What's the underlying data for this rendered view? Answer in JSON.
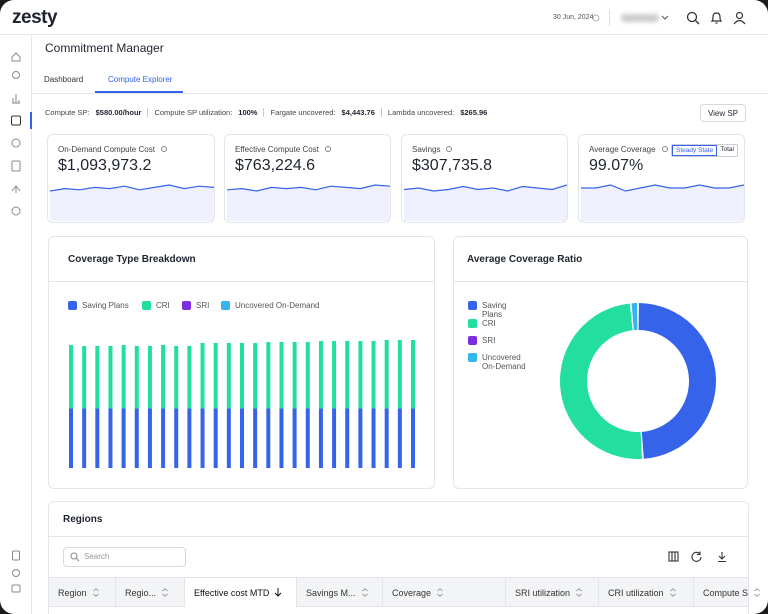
{
  "header": {
    "logo": "zesty",
    "date": "30 Jun, 2024"
  },
  "page": {
    "title": "Commitment Manager",
    "tabs": [
      "Dashboard",
      "Compute Explorer"
    ]
  },
  "summary": [
    {
      "label": "Compute SP:",
      "value": "$580.00/hour"
    },
    {
      "label": "Compute SP utilization:",
      "value": "100%"
    },
    {
      "label": "Fargate uncovered:",
      "value": "$4,443.76"
    },
    {
      "label": "Lambda uncovered:",
      "value": "$265.96"
    }
  ],
  "view_button": "View SP",
  "kpis": [
    {
      "label": "On-Demand Compute Cost",
      "value": "$1,093,973.2",
      "trend": [
        50,
        52,
        51,
        53,
        52,
        54,
        51,
        53,
        55,
        52,
        54,
        53
      ]
    },
    {
      "label": "Effective Compute Cost",
      "value": "$763,224.6",
      "trend": [
        51,
        52,
        50,
        53,
        52,
        53,
        51,
        54,
        53,
        52,
        55,
        54
      ]
    },
    {
      "label": "Savings",
      "value": "$307,735.8",
      "trend": [
        52,
        53,
        51,
        52,
        54,
        52,
        53,
        51,
        54,
        53,
        52,
        55
      ]
    },
    {
      "label": "Average Coverage",
      "value": "99.07%",
      "toggle": [
        "Steady State",
        "Total"
      ],
      "trend": [
        53,
        53,
        54,
        52,
        53,
        54,
        53,
        53,
        54,
        53,
        53,
        54
      ]
    }
  ],
  "coverage_breakdown": {
    "type": "bar",
    "stacked": true,
    "title": "Coverage Type Breakdown",
    "series": [
      {
        "name": "Saving Plans",
        "color": "#3563e9",
        "values": [
          60,
          60,
          60,
          60,
          60,
          60,
          60,
          60,
          60,
          60,
          60,
          60,
          60,
          60,
          60,
          60,
          60,
          60,
          60,
          60,
          60,
          60,
          60,
          60,
          60,
          60,
          60
        ]
      },
      {
        "name": "CRI",
        "color": "#22dfa0",
        "values": [
          64,
          63,
          63,
          63,
          64,
          63,
          63,
          64,
          63,
          63,
          66,
          66,
          66,
          66,
          66,
          67,
          67,
          67,
          67,
          68,
          68,
          68,
          68,
          68,
          69,
          69,
          69
        ]
      },
      {
        "name": "SRI",
        "color": "#7b2fe0",
        "values": [
          0,
          0,
          0,
          0,
          0,
          0,
          0,
          0,
          0,
          0,
          0,
          0,
          0,
          0,
          0,
          0,
          0,
          0,
          0,
          0,
          0,
          0,
          0,
          0,
          0,
          0,
          0
        ]
      },
      {
        "name": "Uncovered On-Demand",
        "color": "#33b5f0",
        "values": [
          0,
          0,
          0,
          0,
          0,
          0,
          0,
          0,
          0,
          0,
          0,
          0,
          0,
          0,
          0,
          0,
          0,
          0,
          0,
          0,
          0,
          0,
          0,
          0,
          0,
          0,
          0
        ]
      }
    ]
  },
  "coverage_ratio": {
    "type": "donut",
    "title": "Average Coverage Ratio",
    "series": [
      {
        "name": "Saving Plans",
        "color": "#3563e9",
        "value": 49
      },
      {
        "name": "CRI",
        "color": "#22dfa0",
        "value": 49.5
      },
      {
        "name": "SRI",
        "color": "#7b2fe0",
        "value": 0
      },
      {
        "name": "Uncovered On-Demand",
        "color": "#33b5f0",
        "value": 1.5
      }
    ]
  },
  "regions": {
    "title": "Regions",
    "search_placeholder": "Search",
    "columns": [
      "Region",
      "Regio...",
      "Effective cost MTD",
      "Savings M...",
      "Coverage",
      "SRI utilization",
      "CRI utilization",
      "Compute S"
    ]
  }
}
